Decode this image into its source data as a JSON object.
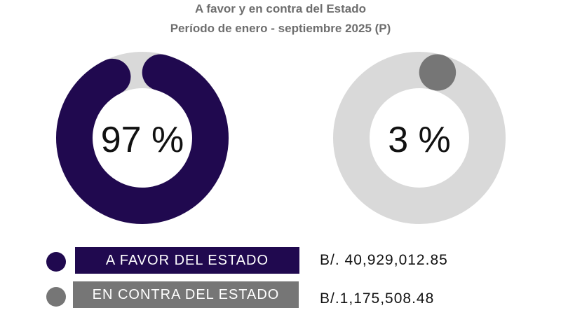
{
  "chart_data": {
    "type": "pie",
    "title": "A favor y en contra del Estado",
    "subtitle": "Período de enero - septiembre 2025 (P)",
    "series": [
      {
        "name": "A FAVOR DEL ESTADO",
        "percent": 97,
        "label": "97 %",
        "amount": "B/. 40,929,012.85",
        "color": "#20094f"
      },
      {
        "name": "EN CONTRA DEL ESTADO",
        "percent": 3,
        "label": "3 %",
        "amount": "B/.1,175,508.48",
        "color": "#767676"
      }
    ],
    "track_color": "#d9d9d9"
  }
}
